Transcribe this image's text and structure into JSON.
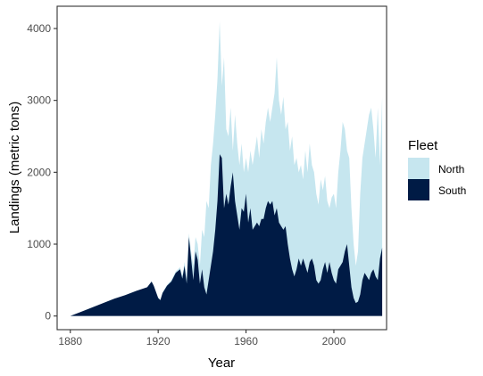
{
  "chart_data": {
    "type": "area",
    "title": "",
    "xlabel": "Year",
    "ylabel": "Landings (metric tons)",
    "xlim": [
      1874,
      2024
    ],
    "ylim": [
      -190,
      4310
    ],
    "x_ticks": [
      1880,
      1920,
      1960,
      2000
    ],
    "y_ticks": [
      0,
      1000,
      2000,
      3000,
      4000
    ],
    "grid": false,
    "stacked": true,
    "legend": {
      "title": "Fleet",
      "position": "right",
      "entries": [
        "North",
        "South"
      ]
    },
    "series": [
      {
        "name": "South",
        "color": "#001b45",
        "points": [
          [
            1880,
            0
          ],
          [
            1885,
            60
          ],
          [
            1890,
            120
          ],
          [
            1895,
            180
          ],
          [
            1900,
            240
          ],
          [
            1905,
            290
          ],
          [
            1910,
            350
          ],
          [
            1915,
            400
          ],
          [
            1917,
            480
          ],
          [
            1918,
            420
          ],
          [
            1920,
            250
          ],
          [
            1921,
            220
          ],
          [
            1922,
            320
          ],
          [
            1924,
            420
          ],
          [
            1926,
            480
          ],
          [
            1928,
            600
          ],
          [
            1930,
            650
          ],
          [
            1931,
            520
          ],
          [
            1932,
            700
          ],
          [
            1933,
            450
          ],
          [
            1934,
            1100
          ],
          [
            1935,
            800
          ],
          [
            1936,
            500
          ],
          [
            1937,
            900
          ],
          [
            1938,
            780
          ],
          [
            1939,
            450
          ],
          [
            1940,
            650
          ],
          [
            1941,
            400
          ],
          [
            1942,
            300
          ],
          [
            1943,
            500
          ],
          [
            1944,
            700
          ],
          [
            1945,
            900
          ],
          [
            1946,
            1200
          ],
          [
            1947,
            1600
          ],
          [
            1948,
            2250
          ],
          [
            1949,
            2200
          ],
          [
            1950,
            1500
          ],
          [
            1951,
            1700
          ],
          [
            1952,
            1550
          ],
          [
            1953,
            1800
          ],
          [
            1954,
            2000
          ],
          [
            1955,
            1600
          ],
          [
            1956,
            1400
          ],
          [
            1957,
            1200
          ],
          [
            1958,
            1500
          ],
          [
            1959,
            1450
          ],
          [
            1960,
            1700
          ],
          [
            1961,
            1300
          ],
          [
            1962,
            1500
          ],
          [
            1963,
            1200
          ],
          [
            1964,
            1250
          ],
          [
            1965,
            1300
          ],
          [
            1966,
            1250
          ],
          [
            1967,
            1350
          ],
          [
            1968,
            1350
          ],
          [
            1969,
            1500
          ],
          [
            1970,
            1600
          ],
          [
            1971,
            1550
          ],
          [
            1972,
            1600
          ],
          [
            1973,
            1400
          ],
          [
            1974,
            1500
          ],
          [
            1975,
            1300
          ],
          [
            1976,
            1250
          ],
          [
            1977,
            1200
          ],
          [
            1978,
            1250
          ],
          [
            1979,
            1000
          ],
          [
            1980,
            800
          ],
          [
            1981,
            650
          ],
          [
            1982,
            550
          ],
          [
            1983,
            650
          ],
          [
            1984,
            800
          ],
          [
            1985,
            700
          ],
          [
            1986,
            800
          ],
          [
            1987,
            700
          ],
          [
            1988,
            600
          ],
          [
            1989,
            750
          ],
          [
            1990,
            800
          ],
          [
            1991,
            700
          ],
          [
            1992,
            500
          ],
          [
            1993,
            450
          ],
          [
            1994,
            500
          ],
          [
            1995,
            650
          ],
          [
            1996,
            750
          ],
          [
            1997,
            600
          ],
          [
            1998,
            750
          ],
          [
            1999,
            600
          ],
          [
            2000,
            500
          ],
          [
            2001,
            450
          ],
          [
            2002,
            650
          ],
          [
            2003,
            700
          ],
          [
            2004,
            750
          ],
          [
            2005,
            900
          ],
          [
            2006,
            1000
          ],
          [
            2007,
            700
          ],
          [
            2008,
            400
          ],
          [
            2009,
            250
          ],
          [
            2010,
            180
          ],
          [
            2011,
            200
          ],
          [
            2012,
            300
          ],
          [
            2013,
            500
          ],
          [
            2014,
            600
          ],
          [
            2015,
            550
          ],
          [
            2016,
            500
          ],
          [
            2017,
            600
          ],
          [
            2018,
            650
          ],
          [
            2019,
            550
          ],
          [
            2020,
            500
          ],
          [
            2021,
            800
          ],
          [
            2022,
            950
          ]
        ]
      },
      {
        "name": "North",
        "color": "#c6e6ef",
        "points": [
          [
            1880,
            0
          ],
          [
            1885,
            60
          ],
          [
            1890,
            120
          ],
          [
            1895,
            180
          ],
          [
            1900,
            240
          ],
          [
            1905,
            290
          ],
          [
            1910,
            350
          ],
          [
            1915,
            400
          ],
          [
            1917,
            480
          ],
          [
            1918,
            420
          ],
          [
            1920,
            260
          ],
          [
            1921,
            230
          ],
          [
            1922,
            330
          ],
          [
            1924,
            430
          ],
          [
            1926,
            500
          ],
          [
            1928,
            620
          ],
          [
            1930,
            680
          ],
          [
            1931,
            560
          ],
          [
            1932,
            750
          ],
          [
            1933,
            520
          ],
          [
            1934,
            1150
          ],
          [
            1935,
            900
          ],
          [
            1936,
            700
          ],
          [
            1937,
            1100
          ],
          [
            1938,
            1000
          ],
          [
            1939,
            700
          ],
          [
            1940,
            1200
          ],
          [
            1941,
            1100
          ],
          [
            1942,
            1600
          ],
          [
            1943,
            1500
          ],
          [
            1944,
            2100
          ],
          [
            1945,
            2400
          ],
          [
            1946,
            2800
          ],
          [
            1947,
            3300
          ],
          [
            1948,
            4100
          ],
          [
            1949,
            3200
          ],
          [
            1950,
            3600
          ],
          [
            1951,
            2600
          ],
          [
            1952,
            2500
          ],
          [
            1953,
            2900
          ],
          [
            1954,
            2300
          ],
          [
            1955,
            2800
          ],
          [
            1956,
            2400
          ],
          [
            1957,
            2100
          ],
          [
            1958,
            2400
          ],
          [
            1959,
            2000
          ],
          [
            1960,
            2200
          ],
          [
            1961,
            2000
          ],
          [
            1962,
            2300
          ],
          [
            1963,
            2100
          ],
          [
            1964,
            2300
          ],
          [
            1965,
            2500
          ],
          [
            1966,
            2200
          ],
          [
            1967,
            2600
          ],
          [
            1968,
            2400
          ],
          [
            1969,
            2700
          ],
          [
            1970,
            2900
          ],
          [
            1971,
            2700
          ],
          [
            1972,
            2900
          ],
          [
            1973,
            3100
          ],
          [
            1974,
            3600
          ],
          [
            1975,
            3000
          ],
          [
            1976,
            2800
          ],
          [
            1977,
            3050
          ],
          [
            1978,
            2600
          ],
          [
            1979,
            2700
          ],
          [
            1980,
            2300
          ],
          [
            1981,
            2500
          ],
          [
            1982,
            2100
          ],
          [
            1983,
            2200
          ],
          [
            1984,
            2000
          ],
          [
            1985,
            2100
          ],
          [
            1986,
            1900
          ],
          [
            1987,
            2300
          ],
          [
            1988,
            2000
          ],
          [
            1989,
            2400
          ],
          [
            1990,
            2100
          ],
          [
            1991,
            2000
          ],
          [
            1992,
            1700
          ],
          [
            1993,
            1550
          ],
          [
            1994,
            1900
          ],
          [
            1995,
            1750
          ],
          [
            1996,
            1950
          ],
          [
            1997,
            1600
          ],
          [
            1998,
            1500
          ],
          [
            1999,
            1650
          ],
          [
            2000,
            1700
          ],
          [
            2001,
            1500
          ],
          [
            2002,
            2000
          ],
          [
            2003,
            2300
          ],
          [
            2004,
            2700
          ],
          [
            2005,
            2600
          ],
          [
            2006,
            2300
          ],
          [
            2007,
            2200
          ],
          [
            2008,
            1500
          ],
          [
            2009,
            1000
          ],
          [
            2010,
            700
          ],
          [
            2011,
            900
          ],
          [
            2012,
            1700
          ],
          [
            2013,
            2200
          ],
          [
            2014,
            2400
          ],
          [
            2015,
            2600
          ],
          [
            2016,
            2800
          ],
          [
            2017,
            2900
          ],
          [
            2018,
            2600
          ],
          [
            2019,
            2200
          ],
          [
            2020,
            2900
          ],
          [
            2021,
            2100
          ],
          [
            2022,
            3050
          ]
        ]
      }
    ]
  }
}
